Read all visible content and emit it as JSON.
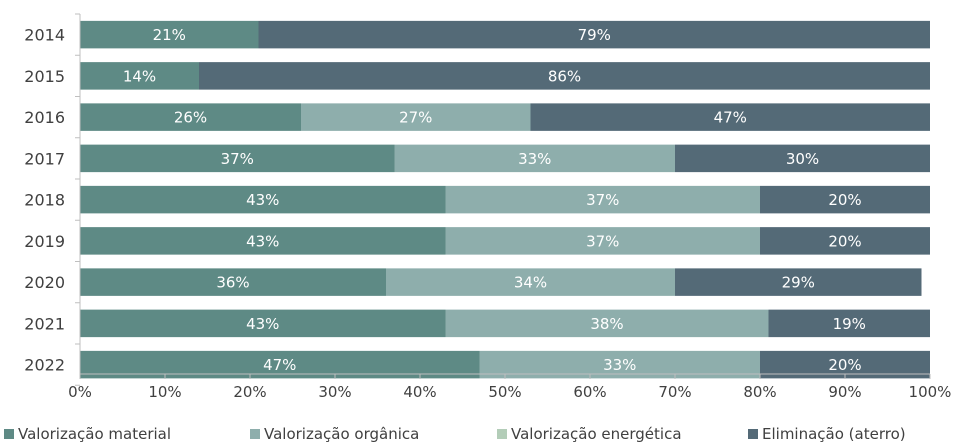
{
  "chart_data": {
    "type": "bar",
    "orientation": "horizontal",
    "stacked": true,
    "title": "",
    "xlabel": "",
    "ylabel": "",
    "xlim": [
      0,
      100
    ],
    "x_ticks": [
      "0%",
      "10%",
      "20%",
      "30%",
      "40%",
      "50%",
      "60%",
      "70%",
      "80%",
      "90%",
      "100%"
    ],
    "grid": false,
    "legend_position": "bottom",
    "categories": [
      "2014",
      "2015",
      "2016",
      "2017",
      "2018",
      "2019",
      "2020",
      "2021",
      "2022"
    ],
    "series": [
      {
        "name": "Valorização material",
        "color": "#5e8a85",
        "values": [
          21,
          14,
          26,
          37,
          43,
          43,
          36,
          43,
          47
        ],
        "labels": [
          "21%",
          "14%",
          "26%",
          "37%",
          "43%",
          "43%",
          "36%",
          "43%",
          "47%"
        ]
      },
      {
        "name": "Valorização orgânica",
        "color": "#8eaeac",
        "values": [
          0,
          0,
          27,
          33,
          37,
          37,
          34,
          38,
          33
        ],
        "labels": [
          "",
          "",
          "27%",
          "33%",
          "37%",
          "37%",
          "34%",
          "38%",
          "33%"
        ]
      },
      {
        "name": "Valorização energética",
        "color": "#b3cdb8",
        "values": [
          0,
          0,
          0,
          0,
          0,
          0,
          0,
          0,
          0
        ],
        "labels": [
          "",
          "",
          "",
          "",
          "",
          "",
          "",
          "",
          ""
        ]
      },
      {
        "name": "Eliminação (aterro)",
        "color": "#546a77",
        "values": [
          79,
          86,
          47,
          30,
          20,
          20,
          29,
          19,
          20
        ],
        "labels": [
          "79%",
          "86%",
          "47%",
          "30%",
          "20%",
          "20%",
          "29%",
          "19%",
          "20%"
        ]
      }
    ]
  }
}
